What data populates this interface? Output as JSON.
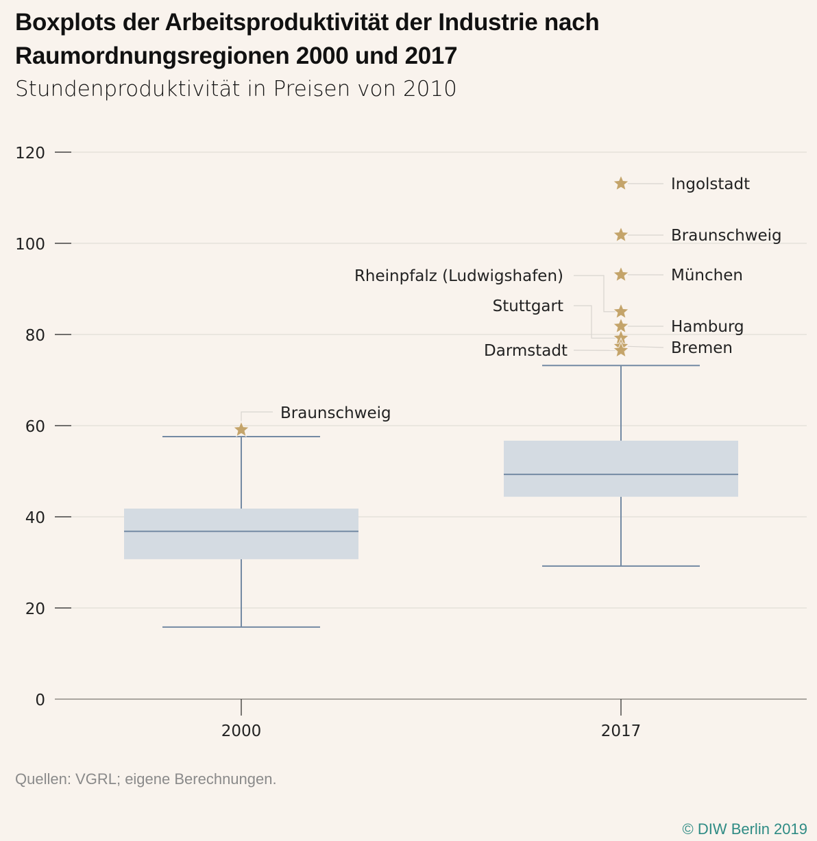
{
  "header": {
    "title": "Boxplots der Arbeitsproduktivität der Industrie nach Raumordnungsregionen 2000 und 2017",
    "subtitle": "Stundenproduktivität in Preisen von 2010"
  },
  "footer": {
    "source": "Quellen: VGRL; eigene Berechnungen.",
    "copyright": "© DIW Berlin 2019"
  },
  "colors": {
    "background": "#f9f3ed",
    "box_fill": "#d4dbe2",
    "box_line": "#7389a3",
    "outlier": "#c4a46a",
    "grid": "#e2ddd7",
    "axis": "#aaa59f",
    "copyright": "#2e8b84"
  },
  "chart_data": {
    "type": "boxplot",
    "title": "Boxplots der Arbeitsproduktivität der Industrie nach Raumordnungsregionen 2000 und 2017",
    "subtitle": "Stundenproduktivität in Preisen von 2010",
    "xlabel": "",
    "ylabel": "",
    "ylim": [
      0,
      120
    ],
    "yticks": [
      0,
      20,
      40,
      60,
      80,
      100,
      120
    ],
    "grid": true,
    "categories": [
      "2000",
      "2017"
    ],
    "series": [
      {
        "name": "2000",
        "whisker_low": 15.8,
        "q1": 30.7,
        "median": 36.8,
        "q3": 41.8,
        "whisker_high": 57.6,
        "outliers": [
          {
            "label": "Braunschweig",
            "value": 59.1
          }
        ]
      },
      {
        "name": "2017",
        "whisker_low": 29.2,
        "q1": 44.4,
        "median": 49.3,
        "q3": 56.7,
        "whisker_high": 73.2,
        "outliers": [
          {
            "label": "Ingolstadt",
            "value": 113.1
          },
          {
            "label": "Braunschweig",
            "value": 101.8
          },
          {
            "label": "München",
            "value": 93.1
          },
          {
            "label": "Rheinpfalz (Ludwigshafen)",
            "value": 85.0
          },
          {
            "label": "Hamburg",
            "value": 81.8
          },
          {
            "label": "Stuttgart",
            "value": 79.2
          },
          {
            "label": "Bremen",
            "value": 77.4
          },
          {
            "label": "Darmstadt",
            "value": 76.5
          }
        ]
      }
    ]
  }
}
